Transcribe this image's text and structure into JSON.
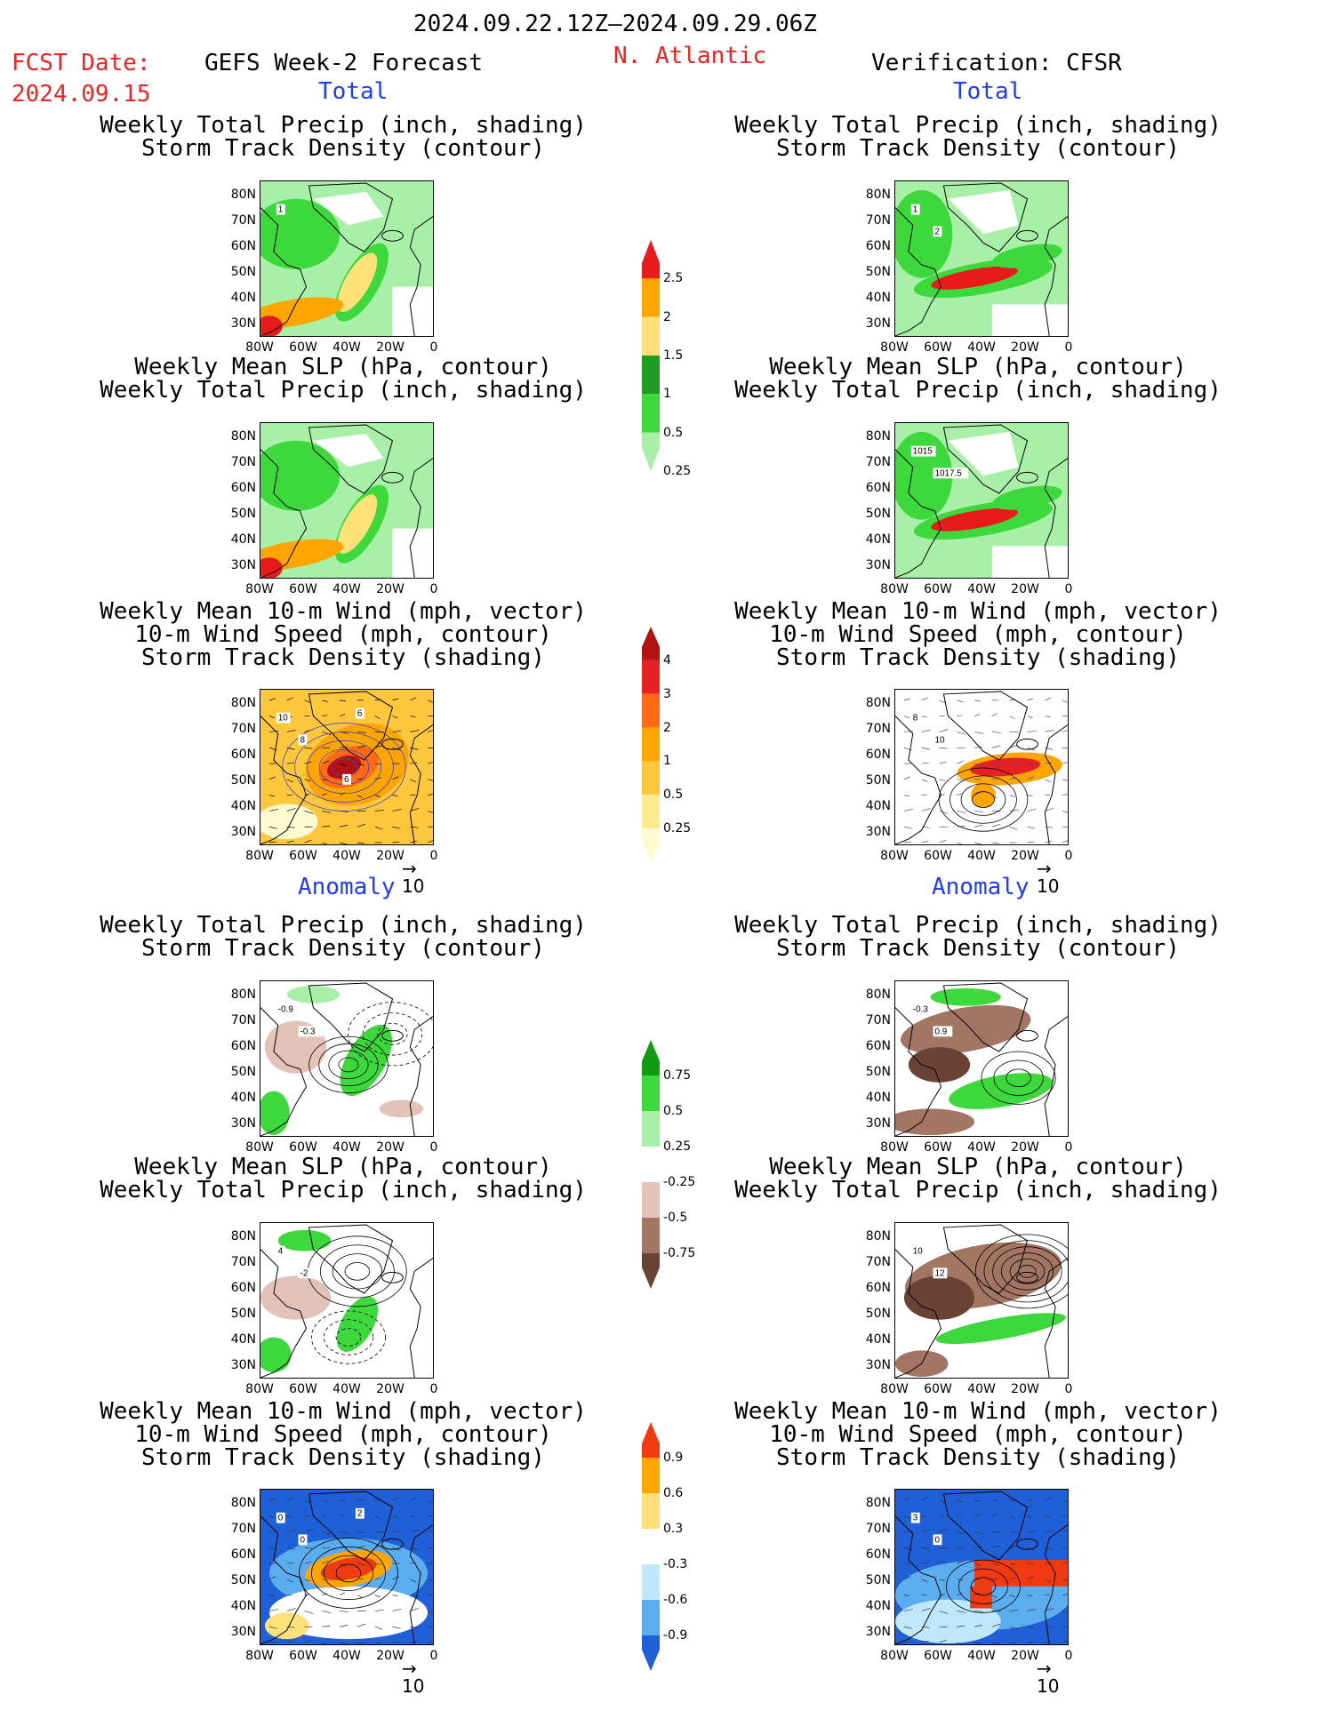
{
  "header": {
    "date_range": "2024.09.22.12Z–2024.09.29.06Z",
    "fcst_label": "FCST Date:",
    "fcst_date": "2024.09.15",
    "model_title": "GEFS Week-2 Forecast",
    "region": "N. Atlantic",
    "verification": "Verification: CFSR"
  },
  "sections": {
    "total": "Total",
    "anomaly": "Anomaly"
  },
  "panel_titles": {
    "precip_track": [
      "Weekly Total Precip (inch, shading)",
      "Storm Track Density (contour)"
    ],
    "slp_precip": [
      "Weekly Mean SLP (hPa, contour)",
      "Weekly Total Precip (inch, shading)"
    ],
    "wind_track": [
      "Weekly Mean 10-m Wind (mph, vector)",
      "10-m Wind Speed (mph, contour)",
      "Storm Track Density (shading)"
    ]
  },
  "axes": {
    "lat_ticks": [
      "80N",
      "70N",
      "60N",
      "50N",
      "40N",
      "30N"
    ],
    "lon_ticks": [
      "80W",
      "60W",
      "40W",
      "20W",
      "0"
    ]
  },
  "vector_ref": "10",
  "colorbars": {
    "precip_total": {
      "labels": [
        "2.5",
        "2",
        "1.5",
        "1",
        "0.5",
        "0.25"
      ],
      "colors": [
        "#e81a1a",
        "#ffa500",
        "#ffe17a",
        "#1f9b1f",
        "#3cd83c",
        "#a8f0a8"
      ]
    },
    "track_total": {
      "labels": [
        "4",
        "3",
        "2",
        "1",
        "0.5",
        "0.25"
      ],
      "colors": [
        "#b31212",
        "#e52121",
        "#ff6a12",
        "#ffa500",
        "#ffc83c",
        "#ffeb8f",
        "#fffbd0"
      ]
    },
    "precip_anom": {
      "labels": [
        "0.75",
        "0.5",
        "0.25",
        "-0.25",
        "-0.5",
        "-0.75"
      ],
      "colors": [
        "#129b12",
        "#3cd83c",
        "#a8f0a8",
        "#ffffff",
        "#e3c2b7",
        "#a37563",
        "#6b4335"
      ]
    },
    "track_anom": {
      "labels": [
        "0.9",
        "0.6",
        "0.3",
        "-0.3",
        "-0.6",
        "-0.9"
      ],
      "colors": [
        "#f03a12",
        "#ffa500",
        "#ffe17a",
        "#ffffff",
        "#bfe8ff",
        "#5aaef0",
        "#1f5fd8"
      ]
    }
  },
  "contour_labels": {
    "fc_precip_track_total": [
      "1"
    ],
    "ver_precip_track_total": [
      "1",
      "2"
    ],
    "ver_slp_total": [
      "1015",
      "1017.5"
    ],
    "fc_wind_total": [
      "10",
      "8",
      "6",
      "6"
    ],
    "ver_wind_total": [
      "8",
      "10"
    ],
    "fc_precip_track_anom": [
      "-0.9",
      "-0.3"
    ],
    "ver_precip_track_anom": [
      "-0.3",
      "0.9"
    ],
    "fc_slp_anom": [
      "4",
      "-2"
    ],
    "ver_slp_anom": [
      "10",
      "12"
    ],
    "fc_wind_anom": [
      "0",
      "0",
      "2"
    ],
    "ver_wind_anom": [
      "3",
      "0"
    ]
  }
}
